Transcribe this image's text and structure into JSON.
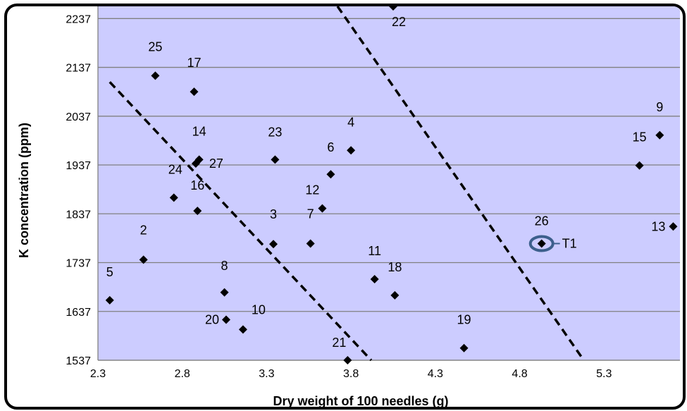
{
  "chart_data": {
    "type": "scatter",
    "xlabel": "Dry weight of 100 needles (g)",
    "ylabel": "K concentration (ppm)",
    "xlim": [
      2.3,
      5.75
    ],
    "ylim": [
      1537,
      2262
    ],
    "x_ticks": [
      2.3,
      2.8,
      3.3,
      3.8,
      4.3,
      4.8,
      5.3
    ],
    "x_tick_labels": [
      "2.3",
      "2.8",
      "3.3",
      "3.8",
      "4.3",
      "4.8",
      "5.3"
    ],
    "y_ticks": [
      1537,
      1637,
      1737,
      1837,
      1937,
      2037,
      2137,
      2237
    ],
    "y_tick_labels": [
      "1537",
      "1637",
      "1737",
      "1837",
      "1937",
      "2037",
      "2137",
      "2237"
    ],
    "grid": "horizontal",
    "plot_background": "#ccccff",
    "marker_color": "#000000",
    "points": [
      {
        "label": "2",
        "x": 2.57,
        "y": 1743
      },
      {
        "label": "3",
        "x": 3.34,
        "y": 1775
      },
      {
        "label": "4",
        "x": 3.8,
        "y": 1967
      },
      {
        "label": "5",
        "x": 2.37,
        "y": 1660
      },
      {
        "label": "6",
        "x": 3.68,
        "y": 1918
      },
      {
        "label": "7",
        "x": 3.56,
        "y": 1776
      },
      {
        "label": "8",
        "x": 3.05,
        "y": 1676
      },
      {
        "label": "9",
        "x": 5.63,
        "y": 1998
      },
      {
        "label": "10",
        "x": 3.16,
        "y": 1600
      },
      {
        "label": "11",
        "x": 3.94,
        "y": 1703
      },
      {
        "label": "12",
        "x": 3.63,
        "y": 1848
      },
      {
        "label": "13",
        "x": 5.71,
        "y": 1811
      },
      {
        "label": "14",
        "x": 2.9,
        "y": 1948
      },
      {
        "label": "15",
        "x": 5.51,
        "y": 1936
      },
      {
        "label": "16",
        "x": 2.89,
        "y": 1843
      },
      {
        "label": "17",
        "x": 2.87,
        "y": 2087
      },
      {
        "label": "18",
        "x": 4.06,
        "y": 1670
      },
      {
        "label": "19",
        "x": 4.47,
        "y": 1562
      },
      {
        "label": "20",
        "x": 3.06,
        "y": 1620
      },
      {
        "label": "21",
        "x": 3.78,
        "y": 1537
      },
      {
        "label": "22",
        "x": 4.05,
        "y": 2262
      },
      {
        "label": "23",
        "x": 3.35,
        "y": 1948
      },
      {
        "label": "24",
        "x": 2.75,
        "y": 1870
      },
      {
        "label": "25",
        "x": 2.64,
        "y": 2120
      },
      {
        "label": "26",
        "x": 4.93,
        "y": 1776
      },
      {
        "label": "27",
        "x": 2.88,
        "y": 1940
      }
    ],
    "trend_lines": [
      {
        "style": "dashed",
        "x1": 2.37,
        "y1": 2107,
        "x2": 3.92,
        "y2": 1537
      },
      {
        "style": "dashed",
        "x1": 3.72,
        "y1": 2262,
        "x2": 5.18,
        "y2": 1537
      }
    ],
    "annotation": {
      "label": "T1",
      "x": 4.93,
      "y": 1776,
      "marker": "ellipse",
      "color": "#3c5f8c"
    }
  }
}
